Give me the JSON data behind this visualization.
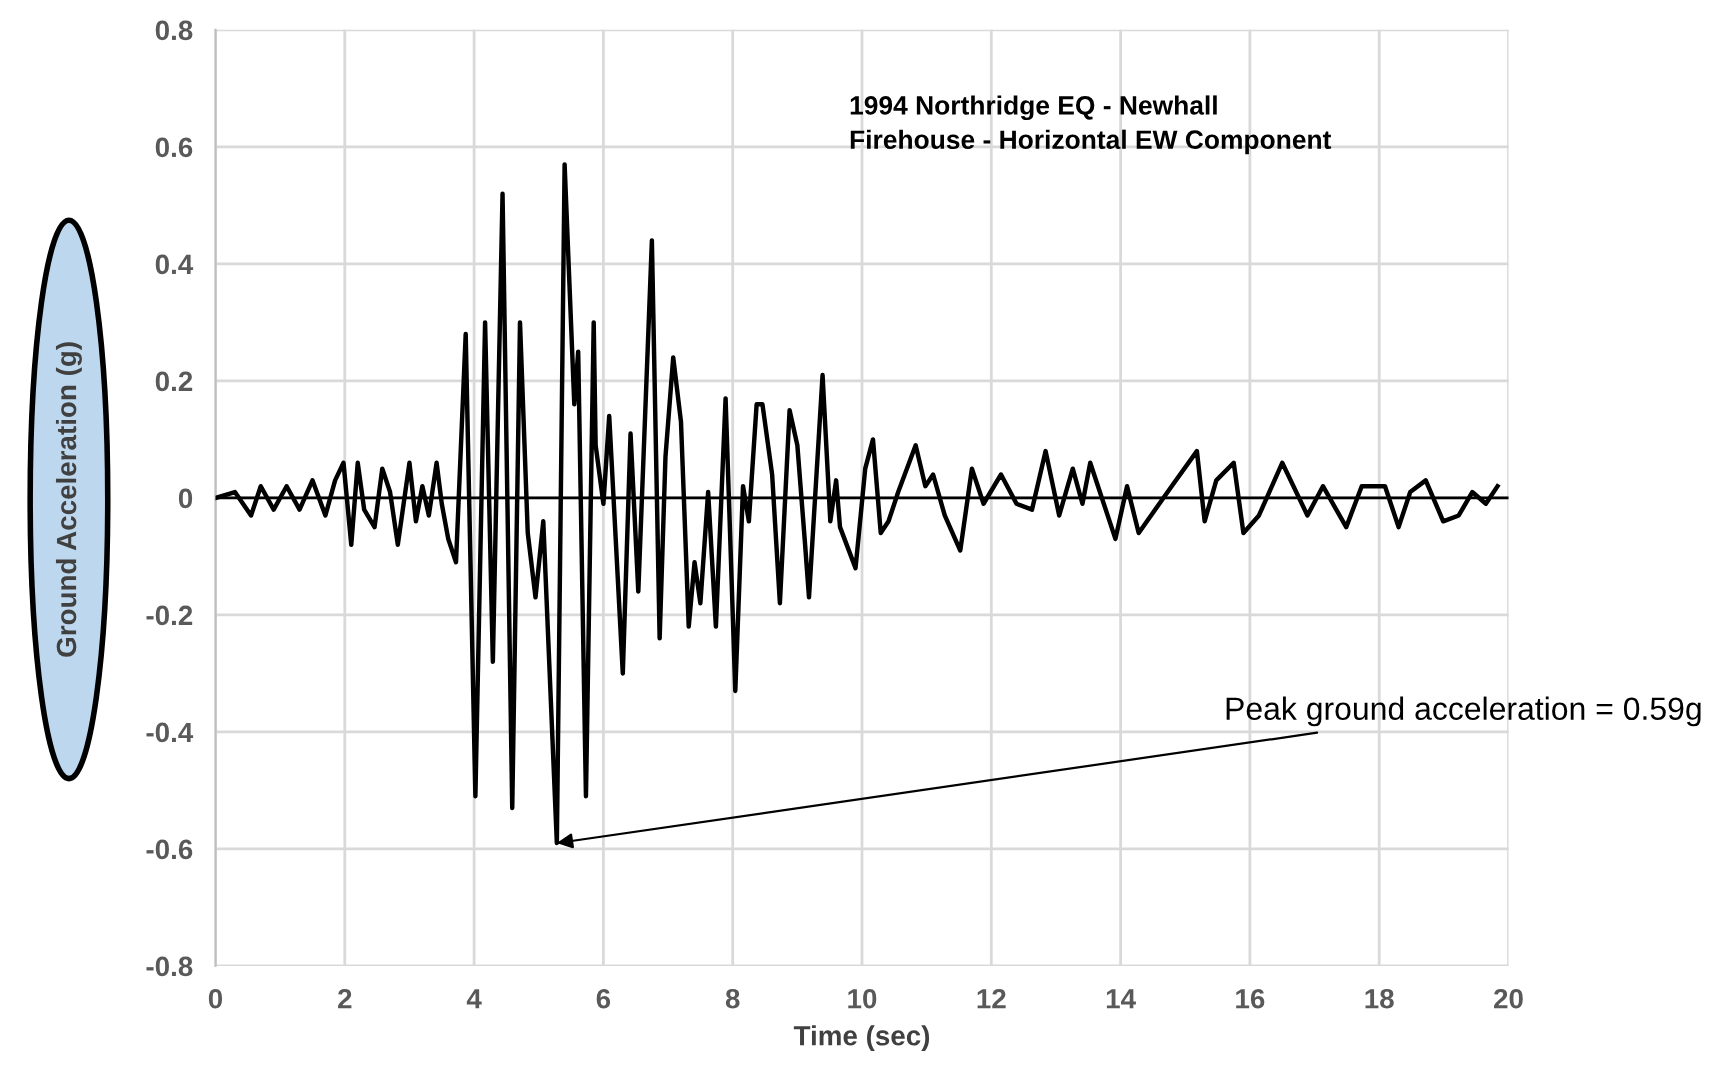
{
  "chart_data": {
    "type": "line",
    "title": "1994 Northridge EQ - Newhall\nFirehouse - Horizontal EW Component",
    "xlabel": "Time (sec)",
    "ylabel": "Ground Acceleration (g)",
    "x": [
      0,
      0.3,
      0.55,
      0.7,
      0.9,
      1.1,
      1.3,
      1.5,
      1.7,
      1.85,
      1.98,
      2.1,
      2.2,
      2.3,
      2.46,
      2.58,
      2.7,
      2.82,
      3.0,
      3.1,
      3.2,
      3.3,
      3.42,
      3.5,
      3.6,
      3.72,
      3.87,
      4.02,
      4.17,
      4.29,
      4.44,
      4.59,
      4.71,
      4.83,
      4.95,
      5.07,
      5.28,
      5.4,
      5.55,
      5.61,
      5.73,
      5.85,
      5.88,
      6.0,
      6.09,
      6.3,
      6.42,
      6.54,
      6.75,
      6.87,
      6.96,
      7.08,
      7.2,
      7.32,
      7.41,
      7.5,
      7.62,
      7.74,
      7.89,
      8.04,
      8.16,
      8.25,
      8.37,
      8.46,
      8.61,
      8.73,
      8.88,
      9.0,
      9.12,
      9.18,
      9.39,
      9.51,
      9.6,
      9.66,
      9.9,
      10.05,
      10.17,
      10.29,
      10.41,
      10.56,
      10.83,
      10.98,
      11.1,
      11.28,
      11.52,
      11.7,
      11.88,
      12.15,
      12.39,
      12.63,
      12.84,
      13.05,
      13.26,
      13.41,
      13.53,
      13.92,
      14.1,
      14.28,
      14.79,
      15.18,
      15.3,
      15.48,
      15.75,
      15.9,
      16.14,
      16.5,
      16.89,
      17.13,
      17.49,
      17.73,
      18.09,
      18.3,
      18.48,
      18.72,
      18.99,
      19.23,
      19.44,
      19.65,
      19.83
    ],
    "series": [
      {
        "color": "#000000",
        "values": [
          0,
          0.01,
          -0.03,
          0.02,
          -0.02,
          0.02,
          -0.02,
          0.03,
          -0.03,
          0.03,
          0.06,
          -0.08,
          0.06,
          -0.02,
          -0.05,
          0.05,
          0.01,
          -0.08,
          0.06,
          -0.04,
          0.02,
          -0.03,
          0.06,
          -0.01,
          -0.07,
          -0.11,
          0.28,
          -0.51,
          0.3,
          -0.28,
          0.52,
          -0.53,
          0.3,
          -0.06,
          -0.17,
          -0.04,
          -0.59,
          0.57,
          0.16,
          0.25,
          -0.51,
          0.3,
          0.09,
          -0.01,
          0.14,
          -0.3,
          0.11,
          -0.16,
          0.44,
          -0.24,
          0.07,
          0.24,
          0.13,
          -0.22,
          -0.11,
          -0.18,
          0.01,
          -0.22,
          0.17,
          -0.33,
          0.02,
          -0.04,
          0.16,
          0.16,
          0.04,
          -0.18,
          0.15,
          0.09,
          -0.08,
          -0.17,
          0.21,
          -0.04,
          0.03,
          -0.05,
          -0.12,
          0.05,
          0.1,
          -0.06,
          -0.04,
          0.01,
          0.09,
          0.02,
          0.04,
          -0.03,
          -0.09,
          0.05,
          -0.01,
          0.04,
          -0.01,
          -0.02,
          0.08,
          -0.03,
          0.05,
          -0.01,
          0.06,
          -0.07,
          0.02,
          -0.06,
          0.02,
          0.08,
          -0.04,
          0.03,
          0.06,
          -0.06,
          -0.03,
          0.06,
          -0.03,
          0.02,
          -0.05,
          0.02,
          0.02,
          -0.05,
          0.01,
          0.03,
          -0.04,
          -0.03,
          0.01,
          -0.01,
          0.02
        ]
      }
    ],
    "xlim": [
      0,
      20
    ],
    "xticks": [
      0,
      2,
      4,
      6,
      8,
      10,
      12,
      14,
      16,
      18,
      20
    ],
    "ylim": [
      -0.8,
      0.8
    ],
    "yticks": [
      -0.8,
      -0.6,
      -0.4,
      -0.2,
      0,
      0.2,
      0.4,
      0.6,
      0.8
    ],
    "ref_lines": [
      {
        "axis": "y",
        "value": 0,
        "label": null,
        "color": "#000000"
      }
    ],
    "annotations": [
      {
        "text": "Peak ground acceleration = 0.59g",
        "x": 5.28,
        "y": -0.59
      }
    ],
    "grid": true,
    "legend": false,
    "marker": "none",
    "line_style": "solid"
  }
}
